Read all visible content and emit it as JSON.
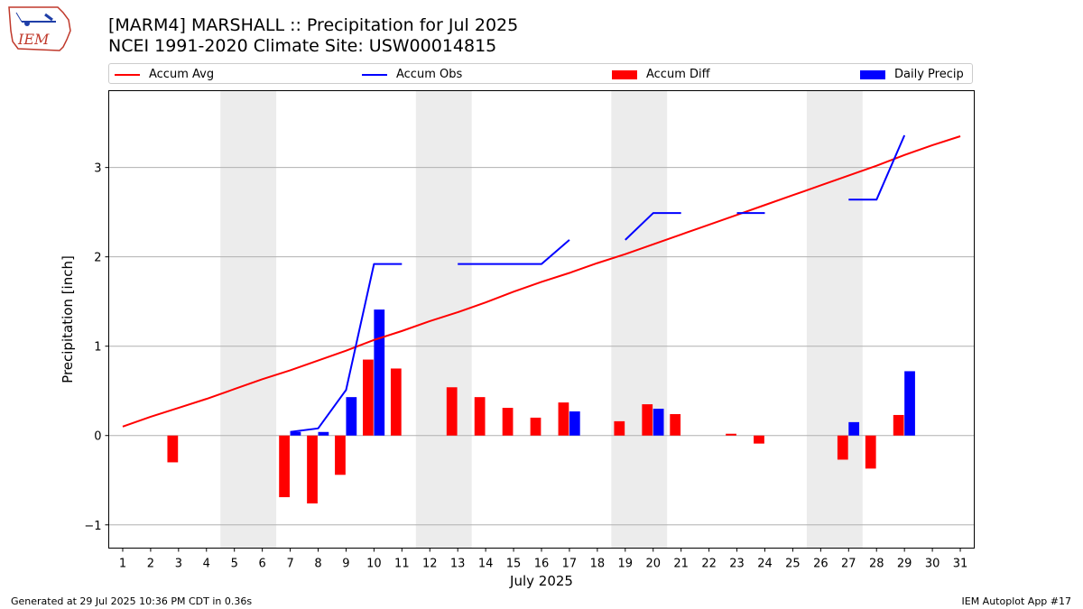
{
  "header": {
    "title_line1": "[MARM4] MARSHALL :: Precipitation for Jul 2025",
    "title_line2": "NCEI 1991-2020 Climate Site: USW00014815",
    "logo_text": "IEM"
  },
  "legend": {
    "items": [
      {
        "label": "Accum Avg",
        "kind": "line",
        "color": "#ff0000"
      },
      {
        "label": "Accum Obs",
        "kind": "line",
        "color": "#0000ff"
      },
      {
        "label": "Accum Diff",
        "kind": "patch",
        "color": "#ff0000"
      },
      {
        "label": "Daily Precip",
        "kind": "patch",
        "color": "#0000ff"
      }
    ]
  },
  "footer": {
    "left": "Generated at 29 Jul 2025 10:36 PM CDT in 0.36s",
    "right": "IEM Autoplot App #17"
  },
  "chart_data": {
    "type": "bar",
    "xlabel": "July 2025",
    "ylabel": "Precipitation [inch]",
    "ylim": [
      -1.26,
      3.86
    ],
    "xlim": [
      0.5,
      31.5
    ],
    "yticks": [
      -1,
      0,
      1,
      2,
      3
    ],
    "ytick_labels": [
      "−1",
      "0",
      "1",
      "2",
      "3"
    ],
    "categories": [
      "1",
      "2",
      "3",
      "4",
      "5",
      "6",
      "7",
      "8",
      "9",
      "10",
      "11",
      "12",
      "13",
      "14",
      "15",
      "16",
      "17",
      "18",
      "19",
      "20",
      "21",
      "22",
      "23",
      "24",
      "25",
      "26",
      "27",
      "28",
      "29",
      "30",
      "31"
    ],
    "grid": "horizontal",
    "weekend_shading": [
      [
        4.5,
        6.5
      ],
      [
        11.5,
        13.5
      ],
      [
        18.5,
        20.5
      ],
      [
        25.5,
        27.5
      ]
    ],
    "series": [
      {
        "name": "Accum Avg",
        "kind": "line",
        "color": "#ff0000",
        "values": [
          0.1,
          0.21,
          0.31,
          0.41,
          0.52,
          0.63,
          0.73,
          0.84,
          0.95,
          1.07,
          1.17,
          1.28,
          1.38,
          1.49,
          1.61,
          1.72,
          1.82,
          1.93,
          2.03,
          2.14,
          2.25,
          2.36,
          2.47,
          2.58,
          2.69,
          2.8,
          2.91,
          3.02,
          3.14,
          3.25,
          3.35
        ]
      },
      {
        "name": "Accum Obs",
        "kind": "line",
        "color": "#0000ff",
        "values": [
          null,
          null,
          null,
          null,
          null,
          null,
          0.04,
          0.08,
          0.51,
          1.92,
          1.92,
          null,
          1.92,
          1.92,
          1.92,
          1.92,
          2.19,
          null,
          2.19,
          2.49,
          2.49,
          null,
          2.49,
          2.49,
          null,
          null,
          2.64,
          2.64,
          3.36,
          null,
          null
        ]
      },
      {
        "name": "Accum Diff",
        "kind": "bar",
        "color": "#ff0000",
        "values": [
          null,
          null,
          -0.3,
          null,
          null,
          null,
          -0.69,
          -0.76,
          -0.44,
          0.85,
          0.75,
          null,
          0.54,
          0.43,
          0.31,
          0.2,
          0.37,
          null,
          0.16,
          0.35,
          0.24,
          null,
          0.02,
          -0.09,
          null,
          null,
          -0.27,
          -0.37,
          0.23,
          null,
          null
        ]
      },
      {
        "name": "Daily Precip",
        "kind": "bar",
        "color": "#0000ff",
        "values": [
          null,
          null,
          null,
          null,
          null,
          null,
          0.04,
          0.04,
          0.43,
          1.41,
          null,
          null,
          null,
          null,
          null,
          null,
          0.27,
          null,
          null,
          0.3,
          null,
          null,
          null,
          null,
          null,
          null,
          0.15,
          null,
          0.72,
          null,
          null
        ]
      }
    ]
  }
}
